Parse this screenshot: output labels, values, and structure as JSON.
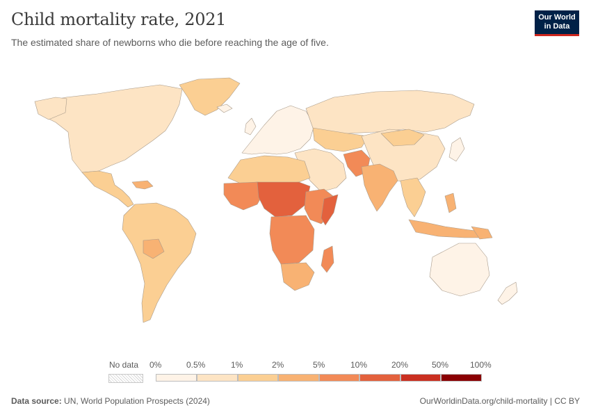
{
  "title": "Child mortality rate, 2021",
  "subtitle": "The estimated share of newborns who die before reaching the age of five.",
  "logo": {
    "line1": "Our World",
    "line2": "in Data"
  },
  "legend": {
    "no_data": "No data",
    "labels": [
      "0%",
      "0.5%",
      "1%",
      "2%",
      "5%",
      "10%",
      "20%",
      "50%",
      "100%"
    ],
    "colors": [
      "#fef3e7",
      "#fde4c4",
      "#fbcf93",
      "#f8b273",
      "#f28a57",
      "#e3613d",
      "#ca3021",
      "#8a0003"
    ]
  },
  "footer": {
    "source_label": "Data source:",
    "source_text": "UN, World Population Prospects (2024)",
    "url": "OurWorldinData.org/child-mortality",
    "license": "CC BY",
    "separator": "|"
  }
}
